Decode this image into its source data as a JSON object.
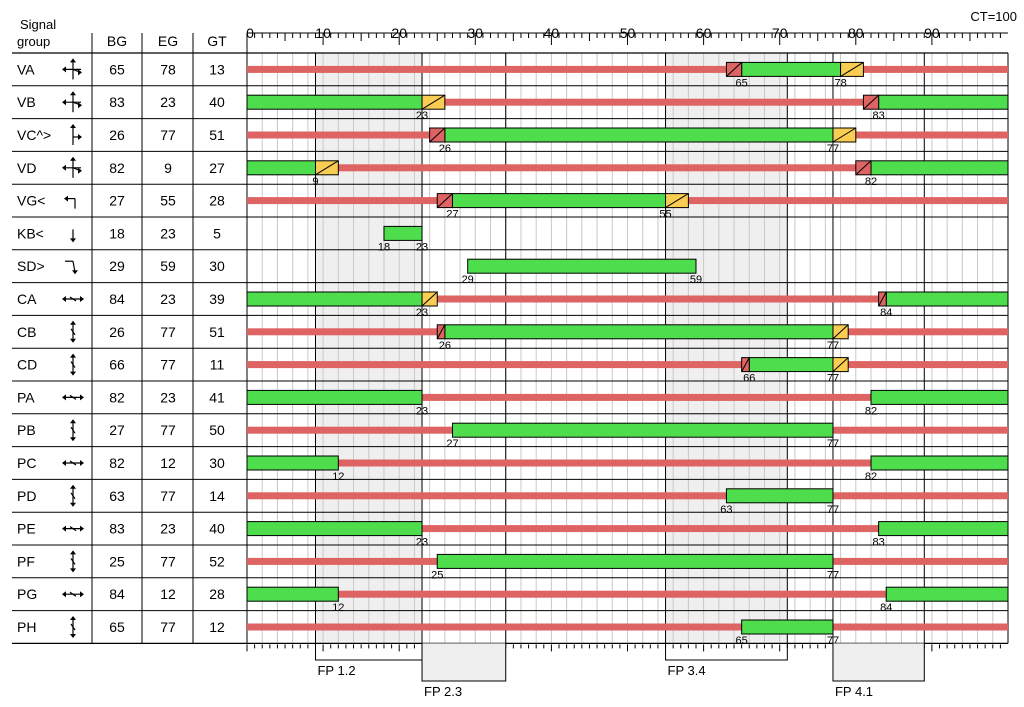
{
  "header": {
    "signal_group": [
      "Signal",
      "group"
    ],
    "bg": "BG",
    "eg": "EG",
    "gt": "GT",
    "cycle_time": "CT=100"
  },
  "chart_data": {
    "type": "signal-timing",
    "cycle": 100,
    "major_ticks": [
      0,
      10,
      20,
      30,
      40,
      50,
      60,
      70,
      80,
      90
    ],
    "colors": {
      "green": "#4ddd4d",
      "red": "#de6363",
      "amber": "#f8cd52",
      "phase_shade": "#efefef",
      "grid": "#c8c8c8",
      "line": "#000000"
    },
    "phases": [
      {
        "label": "FP 1.2",
        "start": 9,
        "end": 23
      },
      {
        "label": "FP 2.3",
        "start": 23,
        "end": 34
      },
      {
        "label": "FP 3.4",
        "start": 55,
        "end": 71
      },
      {
        "label": "FP 4.1",
        "start": 77,
        "end": 89
      }
    ],
    "rows": [
      {
        "name": "VA",
        "icon": "vehicle-all-directions-icon",
        "bg": 65,
        "eg": 78,
        "gt": 13,
        "amber": 3,
        "rg": 2,
        "red": true
      },
      {
        "name": "VB",
        "icon": "vehicle-all-directions-icon",
        "bg": 83,
        "eg": 23,
        "gt": 40,
        "amber": 3,
        "rg": 2,
        "red": true
      },
      {
        "name": "VC^>",
        "icon": "vehicle-straight-right-icon",
        "bg": 26,
        "eg": 77,
        "gt": 51,
        "amber": 3,
        "rg": 2,
        "red": true
      },
      {
        "name": "VD",
        "icon": "vehicle-all-directions-icon",
        "bg": 82,
        "eg": 9,
        "gt": 27,
        "amber": 3,
        "rg": 2,
        "red": true
      },
      {
        "name": "VG<",
        "icon": "vehicle-left-turn-icon",
        "bg": 27,
        "eg": 55,
        "gt": 28,
        "amber": 3,
        "rg": 2,
        "red": true
      },
      {
        "name": "KB<",
        "icon": "arrow-down-icon",
        "bg": 18,
        "eg": 23,
        "gt": 5,
        "amber": 0,
        "rg": 0,
        "red": false
      },
      {
        "name": "SD>",
        "icon": "right-turn-arrow-icon",
        "bg": 29,
        "eg": 59,
        "gt": 30,
        "amber": 0,
        "rg": 0,
        "red": false
      },
      {
        "name": "CA",
        "icon": "cyclist-horizontal-icon",
        "bg": 84,
        "eg": 23,
        "gt": 39,
        "amber": 2,
        "rg": 1,
        "red": true
      },
      {
        "name": "CB",
        "icon": "cyclist-vertical-icon",
        "bg": 26,
        "eg": 77,
        "gt": 51,
        "amber": 2,
        "rg": 1,
        "red": true
      },
      {
        "name": "CD",
        "icon": "cyclist-vertical-icon",
        "bg": 66,
        "eg": 77,
        "gt": 11,
        "amber": 2,
        "rg": 1,
        "red": true
      },
      {
        "name": "PA",
        "icon": "pedestrian-horizontal-icon",
        "bg": 82,
        "eg": 23,
        "gt": 41,
        "amber": 0,
        "rg": 0,
        "red": true
      },
      {
        "name": "PB",
        "icon": "pedestrian-vertical-icon",
        "bg": 27,
        "eg": 77,
        "gt": 50,
        "amber": 0,
        "rg": 0,
        "red": true
      },
      {
        "name": "PC",
        "icon": "pedestrian-horizontal-icon",
        "bg": 82,
        "eg": 12,
        "gt": 30,
        "amber": 0,
        "rg": 0,
        "red": true
      },
      {
        "name": "PD",
        "icon": "pedestrian-vertical-icon",
        "bg": 63,
        "eg": 77,
        "gt": 14,
        "amber": 0,
        "rg": 0,
        "red": true
      },
      {
        "name": "PE",
        "icon": "pedestrian-horizontal-icon",
        "bg": 83,
        "eg": 23,
        "gt": 40,
        "amber": 0,
        "rg": 0,
        "red": true
      },
      {
        "name": "PF",
        "icon": "pedestrian-vertical-icon",
        "bg": 25,
        "eg": 77,
        "gt": 52,
        "amber": 0,
        "rg": 0,
        "red": true
      },
      {
        "name": "PG",
        "icon": "pedestrian-horizontal-icon",
        "bg": 84,
        "eg": 12,
        "gt": 28,
        "amber": 0,
        "rg": 0,
        "red": true
      },
      {
        "name": "PH",
        "icon": "pedestrian-vertical-icon",
        "bg": 65,
        "eg": 77,
        "gt": 12,
        "amber": 0,
        "rg": 0,
        "red": true
      }
    ]
  }
}
